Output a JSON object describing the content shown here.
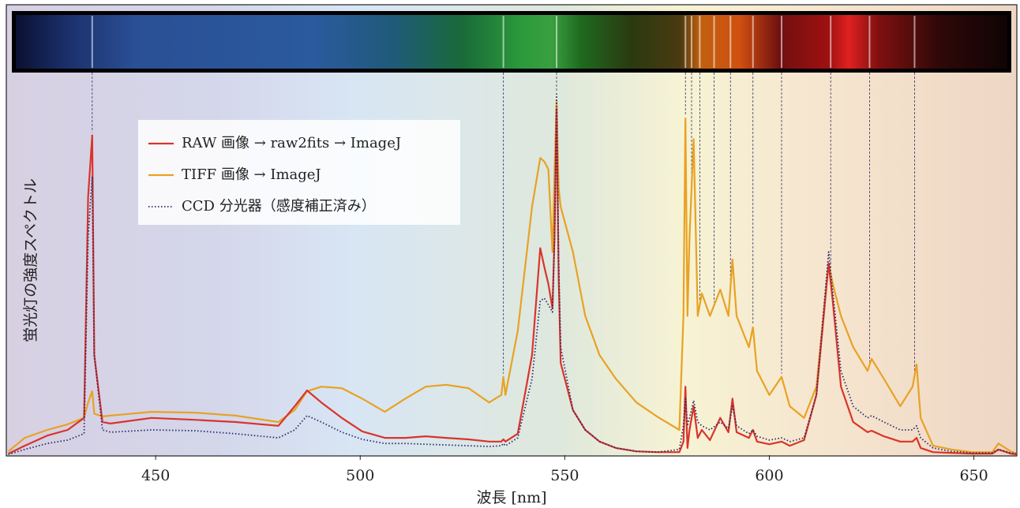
{
  "chart_data": {
    "type": "line",
    "xlabel": "波長 [nm]",
    "ylabel": "蛍光灯の強度スペクトル",
    "xlim": [
      413.5,
      660.5
    ],
    "xticks": [
      450,
      500,
      550,
      600,
      650
    ],
    "ylim": [
      0,
      100
    ],
    "spectral_lines": [
      434.5,
      535,
      548,
      579.5,
      581,
      583,
      586.5,
      590.5,
      596,
      603,
      615,
      624.5,
      635.5
    ],
    "x": [
      414,
      418,
      423.5,
      428.5,
      432.5,
      433.5,
      434.5,
      435,
      437,
      439,
      449,
      459.5,
      469.5,
      480,
      484,
      487,
      490.5,
      495.5,
      500.5,
      506,
      511,
      516,
      521,
      526.5,
      531.5,
      534.5,
      535,
      535.5,
      538.5,
      542,
      544,
      545,
      546,
      547,
      547.5,
      548,
      548.5,
      549,
      552,
      555,
      558.5,
      562.5,
      567.5,
      572.5,
      578,
      579,
      579.5,
      580,
      580.5,
      581.5,
      582.5,
      583.5,
      585.5,
      588,
      590,
      591,
      592,
      595,
      596,
      597,
      600,
      603,
      605,
      608.5,
      611.5,
      614.5,
      615.5,
      617.5,
      620.5,
      624,
      625,
      628,
      632,
      635,
      636,
      637,
      640,
      644.5,
      649.5,
      654.5,
      656,
      659,
      660.5
    ],
    "series": [
      {
        "name": "RAW 画像 → raw2fits → ImageJ",
        "color": "#d9342b",
        "style": "solid",
        "values": [
          0.4,
          2.5,
          5.2,
          6.7,
          9.9,
          68.6,
          85,
          26.6,
          8.8,
          8.4,
          9.9,
          9.4,
          8.8,
          7.8,
          13,
          17.2,
          14,
          9.9,
          6.3,
          4.6,
          4.6,
          5,
          4.6,
          4.2,
          3.6,
          3.6,
          4.2,
          3.6,
          5.7,
          26.6,
          55,
          50,
          45.5,
          39,
          58,
          92,
          47.6,
          24.5,
          12,
          6.7,
          3.6,
          1.9,
          1,
          0.8,
          0.8,
          3.6,
          18.2,
          1.9,
          6.7,
          13,
          4.6,
          6.7,
          4,
          9.9,
          6.1,
          15,
          6.1,
          4.6,
          6.7,
          3.6,
          2.9,
          3.6,
          2.5,
          4,
          16,
          51,
          41,
          18.2,
          8.8,
          6.1,
          6.5,
          5,
          3.6,
          3.6,
          4.6,
          1.9,
          0.8,
          0.6,
          0.4,
          0.4,
          1.5,
          0.4,
          0.2
        ]
      },
      {
        "name": "TIFF 画像 → ImageJ",
        "color": "#e8a224",
        "style": "solid",
        "values": [
          1,
          4.6,
          6.7,
          8.2,
          9.9,
          14,
          17,
          11,
          10.3,
          10.5,
          11.5,
          11.3,
          10.5,
          8.8,
          12,
          17,
          18.2,
          17.8,
          15,
          11.5,
          15,
          18.2,
          18.7,
          17.8,
          14,
          16,
          20.8,
          16,
          33,
          66,
          79,
          78,
          76,
          54,
          75,
          94,
          71,
          66,
          54,
          37,
          26.6,
          20.3,
          14,
          10.3,
          6.7,
          37,
          89.5,
          37,
          58,
          84,
          37,
          43,
          37,
          44,
          37,
          52,
          37,
          28.7,
          34,
          22.4,
          16,
          20.8,
          13,
          9.9,
          18.2,
          51,
          45.5,
          37,
          28.7,
          22.4,
          25.6,
          20.3,
          13,
          18.2,
          24.1,
          9.9,
          2.5,
          1.5,
          0.8,
          0.8,
          3.1,
          1,
          0.4
        ]
      },
      {
        "name": "CCD 分光器（感度補正済み）",
        "color": "#2a2c6a",
        "style": "dotted",
        "values": [
          0.2,
          1.5,
          3.1,
          4,
          5.7,
          58,
          74,
          26.6,
          6.7,
          6.1,
          6.7,
          6.5,
          5.7,
          4.6,
          6.7,
          10.5,
          8.8,
          6.1,
          4.2,
          3.1,
          3.1,
          2.9,
          2.7,
          2.5,
          2.3,
          2.5,
          3.1,
          2.5,
          4.6,
          20.3,
          41,
          41.7,
          40,
          38,
          58,
          96,
          52,
          28.7,
          12,
          6.7,
          3.6,
          1.9,
          1,
          0.8,
          1.5,
          7.8,
          15,
          7.8,
          9.9,
          14.5,
          8.8,
          7.8,
          6.7,
          8.8,
          7.1,
          13,
          7.8,
          5.7,
          6.7,
          5,
          4,
          4.6,
          3.6,
          4.6,
          16,
          54,
          43.4,
          22.4,
          13,
          9.9,
          10.5,
          8.8,
          6.7,
          6.7,
          7.8,
          4.6,
          1.9,
          1,
          0.6,
          0.6,
          1.5,
          0.6,
          0.4
        ]
      }
    ]
  }
}
